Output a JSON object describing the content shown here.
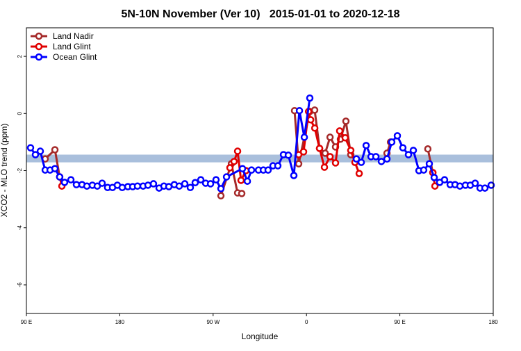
{
  "chart_data": {
    "type": "line",
    "title": "5N-10N November (Ver 10)   2015-01-01 to 2020-12-18",
    "x_label": "Longitude",
    "y_label": "XCO2 - MLO trend (ppm)",
    "xlim": [
      90,
      540
    ],
    "ylim": [
      -7,
      3
    ],
    "xticks": [
      {
        "value": 90,
        "label": "90 E"
      },
      180,
      {
        "value": 270,
        "label": "90 W"
      },
      {
        "value": 360,
        "label": "0"
      },
      {
        "value": 450,
        "label": "90 E"
      },
      {
        "value": 540,
        "label": "180"
      }
    ],
    "yticks": [
      -6,
      -4,
      -2,
      0,
      2
    ],
    "legend": "top-left",
    "reference_band": {
      "values": [
        -1.71,
        -1.44
      ],
      "color": "#a9bfdc"
    },
    "series": [
      {
        "name": "Land Nadir",
        "color": "#a52a2a",
        "x": [
          108.1,
          117.5,
          122.1,
          null,
          277.5,
          287.6,
          293.6,
          297.6,
          null,
          348.5,
          352.5,
          363.2,
          367.9,
          372.6,
          378.0,
          382.7,
          388.0,
          392.7,
          398.0,
          402.7,
          null,
          437.6,
          441.0,
          null,
          477.0,
          481.8
        ],
        "values": [
          -1.59,
          -1.27,
          -2.22,
          null,
          -2.88,
          -1.76,
          -2.78,
          -2.8,
          null,
          0.1,
          -1.76,
          0.07,
          0.12,
          -1.22,
          -1.39,
          -0.83,
          -1.17,
          -0.9,
          -0.27,
          -1.44,
          null,
          -1.39,
          -1.0,
          null,
          -1.24,
          -2.07
        ]
      },
      {
        "name": "Land Glint",
        "color": "#e00000",
        "x": [
          122.1,
          124.2,
          null,
          286.2,
          290.2,
          293.6,
          296.9,
          301.6,
          null,
          352.5,
          357.2,
          362.0,
          364.0,
          368.0,
          372.6,
          377.3,
          382.7,
          388.0,
          392.0,
          397.3,
          402.7,
          406.7,
          410.8,
          null,
          481.8,
          483.8
        ],
        "values": [
          -2.22,
          -2.54,
          null,
          -1.9,
          -1.68,
          -1.32,
          -2.34,
          -2.0,
          null,
          -1.44,
          -1.34,
          0.07,
          -0.22,
          -0.51,
          -1.22,
          -1.88,
          -1.51,
          -1.73,
          -0.61,
          -0.85,
          -1.29,
          -1.71,
          -2.1,
          null,
          -2.07,
          -2.54
        ]
      },
      {
        "name": "Ocean Glint",
        "color": "#0000ff",
        "x": [
          94.0,
          98.7,
          103.4,
          108.1,
          112.8,
          117.5,
          122.1,
          126.8,
          132.9,
          138.2,
          143.6,
          148.3,
          153.6,
          158.3,
          163.0,
          168.3,
          173.0,
          177.7,
          182.4,
          187.8,
          192.5,
          197.1,
          202.5,
          207.2,
          212.5,
          217.9,
          222.6,
          227.3,
          232.6,
          237.3,
          242.7,
          248.0,
          252.7,
          258.1,
          262.8,
          267.5,
          272.8,
          277.5,
          282.9,
          298.3,
          303.0,
          307.0,
          313.7,
          318.4,
          323.0,
          327.7,
          332.4,
          337.8,
          342.5,
          347.8,
          353.2,
          357.9,
          363.2,
          null,
          408.1,
          412.8,
          417.5,
          422.2,
          426.9,
          432.2,
          437.6,
          442.2,
          447.6,
          452.9,
          458.3,
          463.0,
          468.4,
          473.0,
          478.4,
          483.1,
          488.4,
          493.1,
          498.5,
          503.2,
          507.9,
          513.2,
          517.9,
          522.6,
          527.3,
          532.0,
          538.0
        ],
        "values": [
          -1.2,
          -1.44,
          -1.32,
          -1.98,
          -1.98,
          -1.93,
          -2.22,
          -2.41,
          -2.32,
          -2.49,
          -2.49,
          -2.54,
          -2.51,
          -2.54,
          -2.44,
          -2.59,
          -2.59,
          -2.51,
          -2.59,
          -2.56,
          -2.56,
          -2.54,
          -2.54,
          -2.51,
          -2.46,
          -2.61,
          -2.54,
          -2.56,
          -2.49,
          -2.54,
          -2.46,
          -2.59,
          -2.42,
          -2.32,
          -2.44,
          -2.46,
          -2.32,
          -2.63,
          -2.22,
          -1.93,
          -2.37,
          -1.98,
          -1.98,
          -1.98,
          -1.98,
          -1.83,
          -1.83,
          -1.44,
          -1.46,
          -2.17,
          0.1,
          -0.83,
          0.54,
          null,
          -1.59,
          -1.71,
          -1.12,
          -1.51,
          -1.51,
          -1.68,
          -1.59,
          -1.0,
          -0.78,
          -1.2,
          -1.44,
          -1.29,
          -2.0,
          -1.98,
          -1.76,
          -2.24,
          -2.41,
          -2.32,
          -2.49,
          -2.49,
          -2.54,
          -2.51,
          -2.51,
          -2.44,
          -2.61,
          -2.61,
          -2.51
        ]
      }
    ]
  }
}
